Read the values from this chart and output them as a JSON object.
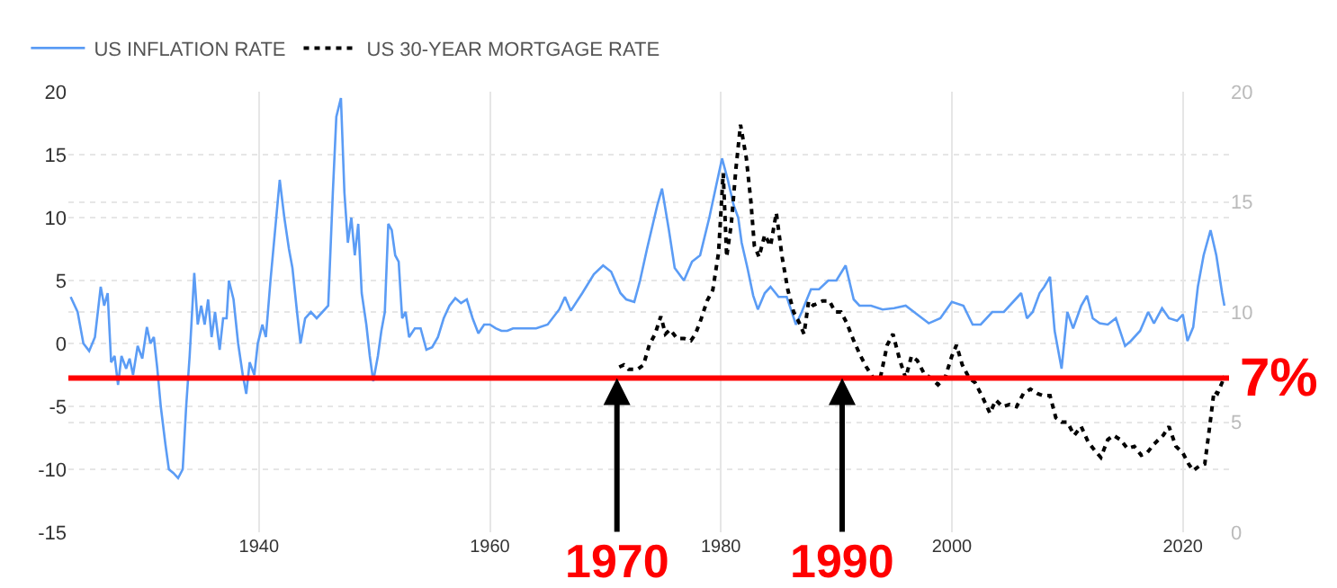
{
  "chart_data": {
    "type": "line",
    "legend": "top left",
    "grid": true,
    "xlim": [
      1923.5,
      2024
    ],
    "xticks": [
      1940,
      1960,
      1980,
      2000,
      2020
    ],
    "ylim": [
      -15,
      20
    ],
    "yticks": [
      -15,
      -10,
      -5,
      0,
      5,
      10,
      15,
      20
    ],
    "y2lim": [
      0,
      20
    ],
    "y2ticks": [
      0,
      5,
      10,
      15,
      20
    ],
    "series": [
      {
        "name": "US INFLATION RATE",
        "color": "#5b9cf5",
        "line_style": "solid",
        "x": [
          1923.7,
          1924.3,
          1924.8,
          1925.3,
          1925.8,
          1926.3,
          1926.6,
          1926.9,
          1927.2,
          1927.5,
          1927.8,
          1928.1,
          1928.5,
          1928.8,
          1929.1,
          1929.5,
          1929.9,
          1930.3,
          1930.6,
          1930.9,
          1931.2,
          1931.5,
          1931.9,
          1932.2,
          1932.6,
          1933.0,
          1933.4,
          1933.7,
          1934.0,
          1934.4,
          1934.7,
          1935.0,
          1935.3,
          1935.6,
          1935.9,
          1936.2,
          1936.6,
          1936.9,
          1937.2,
          1937.4,
          1937.8,
          1938.2,
          1938.6,
          1938.9,
          1939.2,
          1939.6,
          1939.9,
          1940.3,
          1940.6,
          1941.0,
          1941.5,
          1941.8,
          1942.2,
          1942.6,
          1942.9,
          1943.3,
          1943.6,
          1944.0,
          1944.5,
          1945.0,
          1945.5,
          1946.0,
          1946.4,
          1946.7,
          1947.1,
          1947.4,
          1947.7,
          1948.0,
          1948.3,
          1948.6,
          1948.9,
          1949.3,
          1949.6,
          1949.9,
          1950.3,
          1950.6,
          1950.9,
          1951.2,
          1951.5,
          1951.8,
          1952.1,
          1952.4,
          1952.7,
          1953.0,
          1953.5,
          1954.0,
          1954.5,
          1955.0,
          1955.5,
          1956.0,
          1956.5,
          1957.0,
          1957.5,
          1958.0,
          1958.5,
          1959.0,
          1959.5,
          1960.0,
          1960.5,
          1961.0,
          1961.5,
          1962.0,
          1963.0,
          1964.0,
          1965.0,
          1966.0,
          1966.5,
          1967.0,
          1968.0,
          1969.0,
          1969.8,
          1970.5,
          1971.3,
          1971.8,
          1972.5,
          1973.0,
          1973.6,
          1974.5,
          1974.9,
          1975.5,
          1976.0,
          1976.8,
          1977.5,
          1978.2,
          1979.0,
          1979.7,
          1980.1,
          1980.6,
          1981.1,
          1981.5,
          1981.8,
          1982.3,
          1982.8,
          1983.2,
          1983.8,
          1984.3,
          1985.0,
          1985.7,
          1986.5,
          1987.0,
          1987.8,
          1988.5,
          1989.3,
          1990.0,
          1990.8,
          1991.5,
          1992.0,
          1993.0,
          1994.0,
          1995.0,
          1996.0,
          1997.0,
          1998.0,
          1999.0,
          2000.0,
          2001.0,
          2001.8,
          2002.5,
          2003.5,
          2004.5,
          2005.5,
          2006.0,
          2006.5,
          2007.0,
          2007.6,
          2008.0,
          2008.5,
          2008.9,
          2009.5,
          2010.0,
          2010.5,
          2011.2,
          2011.7,
          2012.2,
          2012.8,
          2013.5,
          2014.2,
          2015.0,
          2015.5,
          2016.3,
          2017.0,
          2017.5,
          2018.2,
          2018.8,
          2019.5,
          2020.0,
          2020.4,
          2020.9,
          2021.3,
          2021.8,
          2022.4,
          2022.9,
          2023.4,
          2023.6
        ],
        "values": [
          3.7,
          2.5,
          0,
          -0.6,
          0.5,
          4.5,
          3,
          4,
          -1.5,
          -1,
          -3.3,
          -1,
          -2,
          -1.2,
          -2.5,
          -0.2,
          -1.2,
          1.3,
          0,
          0.5,
          -2,
          -5,
          -8,
          -10,
          -10.3,
          -10.7,
          -10,
          -5,
          -1,
          5.6,
          1.5,
          3,
          1.5,
          3.5,
          0.5,
          2.5,
          -0.5,
          2,
          2,
          5,
          3.5,
          0,
          -2.5,
          -4,
          -1.5,
          -2.5,
          0,
          1.5,
          0.5,
          5,
          10,
          13,
          10,
          7.5,
          6,
          2.5,
          0,
          2,
          2.5,
          2,
          2.5,
          3,
          12,
          18,
          19.5,
          12,
          8,
          10,
          7,
          9.5,
          4,
          1.5,
          -1,
          -3,
          -1,
          1,
          2.5,
          9.5,
          9,
          7,
          6.5,
          2,
          2.5,
          0.5,
          1.2,
          1.2,
          -0.5,
          -0.3,
          0.5,
          2,
          3,
          3.6,
          3.2,
          3.5,
          2,
          0.8,
          1.5,
          1.5,
          1.2,
          1,
          1,
          1.2,
          1.2,
          1.2,
          1.5,
          2.7,
          3.7,
          2.6,
          4,
          5.5,
          6.2,
          5.7,
          4,
          3.5,
          3.3,
          5,
          7.5,
          11,
          12.3,
          9,
          6,
          5,
          6.5,
          7,
          10,
          13,
          14.7,
          13,
          11,
          10,
          8,
          6,
          3.8,
          2.7,
          4,
          4.5,
          3.7,
          3.7,
          1.5,
          2.5,
          4.3,
          4.3,
          5,
          5,
          6.2,
          3.5,
          3,
          3,
          2.7,
          2.8,
          3,
          2.3,
          1.6,
          2,
          3.3,
          3,
          1.5,
          1.5,
          2.5,
          2.5,
          3.5,
          4,
          2,
          2.5,
          4,
          4.5,
          5.3,
          1,
          -2,
          2.5,
          1.2,
          3,
          3.8,
          2,
          1.6,
          1.5,
          2,
          -0.2,
          0.2,
          1,
          2.5,
          1.6,
          2.8,
          2,
          1.8,
          2.3,
          0.2,
          1.3,
          4.5,
          7,
          9,
          7,
          4,
          3
        ]
      },
      {
        "name": "US 30-YEAR MORTGAGE RATE",
        "color": "#000000",
        "line_style": "dotted",
        "axis": "y2",
        "x": [
          1971.2,
          1971.6,
          1972.0,
          1972.8,
          1973.3,
          1973.8,
          1974.3,
          1974.8,
          1975.2,
          1975.6,
          1976.2,
          1976.8,
          1977.4,
          1977.8,
          1978.3,
          1978.8,
          1979.3,
          1979.8,
          1980.2,
          1980.5,
          1980.9,
          1981.3,
          1981.7,
          1982.2,
          1982.6,
          1982.9,
          1983.3,
          1983.8,
          1984.3,
          1984.8,
          1985.3,
          1985.8,
          1986.3,
          1986.8,
          1987.2,
          1987.6,
          1988.0,
          1988.8,
          1989.4,
          1989.9,
          1990.4,
          1990.9,
          1991.5,
          1992.1,
          1992.6,
          1993.2,
          1993.8,
          1994.4,
          1994.9,
          1995.5,
          1996.0,
          1996.5,
          1997.0,
          1997.6,
          1998.2,
          1998.8,
          1999.4,
          2000.0,
          2000.4,
          2000.9,
          2001.5,
          2002.0,
          2002.6,
          2003.3,
          2003.8,
          2004.4,
          2005.0,
          2005.6,
          2006.2,
          2006.8,
          2007.4,
          2007.9,
          2008.5,
          2009.0,
          2009.5,
          2010.0,
          2010.6,
          2011.2,
          2011.8,
          2012.4,
          2012.9,
          2013.5,
          2014.0,
          2014.6,
          2015.2,
          2015.8,
          2016.4,
          2016.9,
          2017.5,
          2018.3,
          2018.8,
          2019.4,
          2020.0,
          2020.5,
          2020.9,
          2021.4,
          2021.9,
          2022.3,
          2022.7,
          2023.0,
          2023.4,
          2023.6
        ],
        "values": [
          7.5,
          7.6,
          7.4,
          7.4,
          7.6,
          8.5,
          9,
          9.8,
          9,
          9.2,
          8.8,
          8.8,
          8.7,
          9,
          9.7,
          10.5,
          11,
          12.7,
          16.3,
          12.5,
          14,
          16.5,
          18.5,
          17,
          15,
          13,
          12.5,
          13.5,
          13,
          14.5,
          12.5,
          11,
          10,
          9.5,
          9,
          10.5,
          10.3,
          10.5,
          10.5,
          10,
          10,
          9.5,
          8.7,
          8,
          7.5,
          7,
          7,
          8.5,
          9,
          7.8,
          7,
          8,
          7.8,
          7.2,
          7,
          6.7,
          7,
          8,
          8.5,
          7.6,
          7,
          6.8,
          6.2,
          5.4,
          6,
          5.7,
          5.8,
          5.7,
          6.3,
          6.5,
          6.3,
          6.2,
          6.2,
          5.2,
          5,
          5,
          4.4,
          4.8,
          4.1,
          3.7,
          3.4,
          4.2,
          4.4,
          4.2,
          3.8,
          3.9,
          3.5,
          3.6,
          4,
          4.4,
          4.8,
          3.9,
          3.6,
          3.1,
          2.8,
          3,
          3.1,
          4.7,
          6.4,
          6.3,
          6.8,
          7.1
        ]
      }
    ],
    "ref_lines": [
      {
        "axis": "y2",
        "value": 7,
        "label": "7%",
        "color": "#ff0000",
        "line_style": "solid"
      }
    ],
    "annotations": [
      {
        "text": "1970",
        "x": 1971,
        "y": -2.75
      },
      {
        "text": "1990",
        "x": 1990.5,
        "y": -2.75
      }
    ]
  }
}
